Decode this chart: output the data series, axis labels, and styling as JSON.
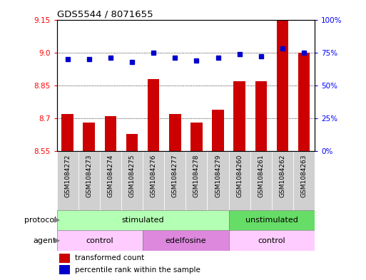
{
  "title": "GDS5544 / 8071655",
  "samples": [
    "GSM1084272",
    "GSM1084273",
    "GSM1084274",
    "GSM1084275",
    "GSM1084276",
    "GSM1084277",
    "GSM1084278",
    "GSM1084279",
    "GSM1084260",
    "GSM1084261",
    "GSM1084262",
    "GSM1084263"
  ],
  "bar_values": [
    8.72,
    8.68,
    8.71,
    8.63,
    8.88,
    8.72,
    8.68,
    8.74,
    8.87,
    8.87,
    9.15,
    9.0
  ],
  "dot_values": [
    70,
    70,
    71,
    68,
    75,
    71,
    69,
    71,
    74,
    72,
    78,
    75
  ],
  "bar_color": "#cc0000",
  "dot_color": "#0000cc",
  "ylim_left": [
    8.55,
    9.15
  ],
  "ylim_right": [
    0,
    100
  ],
  "yticks_left": [
    8.55,
    8.7,
    8.85,
    9.0,
    9.15
  ],
  "yticks_right": [
    0,
    25,
    50,
    75,
    100
  ],
  "ytick_labels_right": [
    "0%",
    "25%",
    "50%",
    "75%",
    "100%"
  ],
  "grid_values": [
    8.7,
    8.85,
    9.0
  ],
  "protocol_groups": [
    {
      "label": "stimulated",
      "start": 0,
      "end": 8,
      "color": "#b3ffb3"
    },
    {
      "label": "unstimulated",
      "start": 8,
      "end": 12,
      "color": "#66dd66"
    }
  ],
  "agent_groups": [
    {
      "label": "control",
      "start": 0,
      "end": 4,
      "color": "#ffccff"
    },
    {
      "label": "edelfosine",
      "start": 4,
      "end": 8,
      "color": "#dd88dd"
    },
    {
      "label": "control",
      "start": 8,
      "end": 12,
      "color": "#ffccff"
    }
  ],
  "legend_bar_label": "transformed count",
  "legend_dot_label": "percentile rank within the sample",
  "bar_base": 8.55,
  "sample_bg": "#d0d0d0",
  "arrow_color": "#808080"
}
